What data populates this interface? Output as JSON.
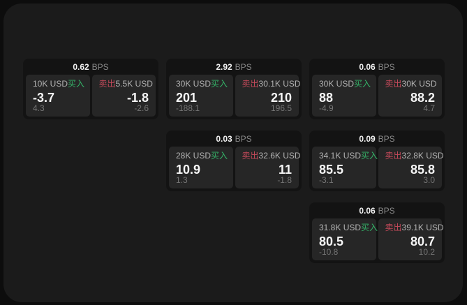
{
  "theme": {
    "page_bg": "#0d0d0d",
    "panel_bg": "#1b1b1b",
    "card_bg": "#131313",
    "tile_bg": "#262626",
    "buy_color": "#34b368",
    "sell_color": "#c54a5a"
  },
  "labels": {
    "bps": "BPS",
    "buy": "买入",
    "sell": "卖出"
  },
  "cards": [
    {
      "bps": "0.62",
      "row": 1,
      "col": 1,
      "buy": {
        "amount": "10K USD",
        "price": "-3.7",
        "delta": "4.3"
      },
      "sell": {
        "amount": "5.5K USD",
        "price": "-1.8",
        "delta": "-2.6"
      }
    },
    {
      "bps": "2.92",
      "row": 1,
      "col": 2,
      "buy": {
        "amount": "30K USD",
        "price": "201",
        "delta": "-188.1"
      },
      "sell": {
        "amount": "30.1K USD",
        "price": "210",
        "delta": "196.5"
      }
    },
    {
      "bps": "0.06",
      "row": 1,
      "col": 3,
      "buy": {
        "amount": "30K USD",
        "price": "88",
        "delta": "-4.9"
      },
      "sell": {
        "amount": "30K USD",
        "price": "88.2",
        "delta": "4.7"
      }
    },
    {
      "bps": "0.03",
      "row": 2,
      "col": 2,
      "buy": {
        "amount": "28K USD",
        "price": "10.9",
        "delta": "1.3"
      },
      "sell": {
        "amount": "32.6K USD",
        "price": "11",
        "delta": "-1.8"
      }
    },
    {
      "bps": "0.09",
      "row": 2,
      "col": 3,
      "buy": {
        "amount": "34.1K USD",
        "price": "85.5",
        "delta": "-3.1"
      },
      "sell": {
        "amount": "32.8K USD",
        "price": "85.8",
        "delta": "3.0"
      }
    },
    {
      "bps": "0.06",
      "row": 3,
      "col": 3,
      "buy": {
        "amount": "31.8K USD",
        "price": "80.5",
        "delta": "-10.8"
      },
      "sell": {
        "amount": "39.1K USD",
        "price": "80.7",
        "delta": "10.2"
      }
    }
  ]
}
